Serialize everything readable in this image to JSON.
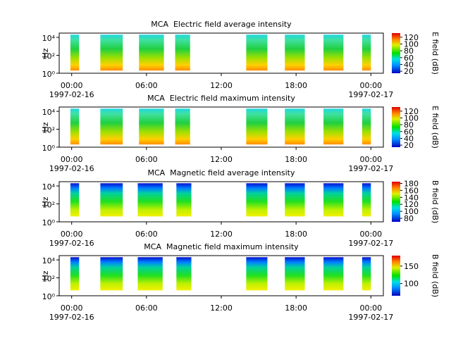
{
  "chart_data": [
    {
      "type": "spectrogram",
      "title": "MCA  Electric field average intensity",
      "ylabel": "Hz",
      "yscale": "log",
      "ylim": [
        1,
        30000
      ],
      "yticks": [
        {
          "value": 1,
          "label": "10⁰"
        },
        {
          "value": 100,
          "label": "10²"
        },
        {
          "value": 10000,
          "label": "10⁴"
        }
      ],
      "xlim": [
        -1,
        25
      ],
      "xticks": [
        {
          "value": 0,
          "label": "00:00"
        },
        {
          "value": 6,
          "label": "06:00"
        },
        {
          "value": 12,
          "label": "12:00"
        },
        {
          "value": 18,
          "label": "18:00"
        },
        {
          "value": 24,
          "label": "00:00"
        }
      ],
      "x_date_labels": [
        {
          "value": 0,
          "label": "1997-02-16"
        },
        {
          "value": 24,
          "label": "1997-02-17"
        }
      ],
      "segments": [
        [
          -0.1,
          0.6
        ],
        [
          2.3,
          4.1
        ],
        [
          5.4,
          7.4
        ],
        [
          8.3,
          9.5
        ],
        [
          14.0,
          15.7
        ],
        [
          17.1,
          18.7
        ],
        [
          20.2,
          21.8
        ],
        [
          23.3,
          24.0
        ]
      ],
      "freq_range": [
        2,
        20000
      ],
      "colorbar": {
        "label": "E field (dB)",
        "lim": [
          14,
          132
        ],
        "ticks": [
          20,
          40,
          60,
          80,
          100,
          120
        ]
      }
    },
    {
      "type": "spectrogram",
      "title": "MCA  Electric field maximum intensity",
      "ylabel": "Hz",
      "yscale": "log",
      "ylim": [
        1,
        30000
      ],
      "yticks": [
        {
          "value": 1,
          "label": "10⁰"
        },
        {
          "value": 100,
          "label": "10²"
        },
        {
          "value": 10000,
          "label": "10⁴"
        }
      ],
      "xlim": [
        -1,
        25
      ],
      "xticks": [
        {
          "value": 0,
          "label": "00:00"
        },
        {
          "value": 6,
          "label": "06:00"
        },
        {
          "value": 12,
          "label": "12:00"
        },
        {
          "value": 18,
          "label": "18:00"
        },
        {
          "value": 24,
          "label": "00:00"
        }
      ],
      "x_date_labels": [
        {
          "value": 0,
          "label": "1997-02-16"
        },
        {
          "value": 24,
          "label": "1997-02-17"
        }
      ],
      "segments": [
        [
          -0.1,
          0.6
        ],
        [
          2.3,
          4.1
        ],
        [
          5.4,
          7.4
        ],
        [
          8.3,
          9.5
        ],
        [
          14.0,
          15.7
        ],
        [
          17.1,
          18.7
        ],
        [
          20.2,
          21.8
        ],
        [
          23.3,
          24.0
        ]
      ],
      "freq_range": [
        2,
        20000
      ],
      "colorbar": {
        "label": "E field (dB)",
        "lim": [
          14,
          132
        ],
        "ticks": [
          20,
          40,
          60,
          80,
          100,
          120
        ]
      }
    },
    {
      "type": "spectrogram",
      "title": "MCA  Magnetic field average intensity",
      "ylabel": "Hz",
      "yscale": "log",
      "ylim": [
        1,
        30000
      ],
      "yticks": [
        {
          "value": 1,
          "label": "10⁰"
        },
        {
          "value": 100,
          "label": "10²"
        },
        {
          "value": 10000,
          "label": "10⁴"
        }
      ],
      "xlim": [
        -1,
        25
      ],
      "xticks": [
        {
          "value": 0,
          "label": "00:00"
        },
        {
          "value": 6,
          "label": "06:00"
        },
        {
          "value": 12,
          "label": "12:00"
        },
        {
          "value": 18,
          "label": "18:00"
        },
        {
          "value": 24,
          "label": "00:00"
        }
      ],
      "x_date_labels": [
        {
          "value": 0,
          "label": "1997-02-16"
        },
        {
          "value": 24,
          "label": "1997-02-17"
        }
      ],
      "segments": [
        [
          -0.1,
          0.6
        ],
        [
          2.3,
          4.1
        ],
        [
          5.3,
          7.3
        ],
        [
          8.4,
          9.6
        ],
        [
          14.0,
          15.7
        ],
        [
          17.1,
          18.7
        ],
        [
          20.2,
          21.8
        ],
        [
          23.3,
          24.0
        ]
      ],
      "freq_range": [
        4,
        20000
      ],
      "colorbar": {
        "label": "B field (dB)",
        "lim": [
          70,
          185
        ],
        "ticks": [
          80,
          100,
          120,
          140,
          160,
          180
        ]
      }
    },
    {
      "type": "spectrogram",
      "title": "MCA  Magnetic field maximum intensity",
      "ylabel": "Hz",
      "yscale": "log",
      "ylim": [
        1,
        30000
      ],
      "yticks": [
        {
          "value": 1,
          "label": "10⁰"
        },
        {
          "value": 100,
          "label": "10²"
        },
        {
          "value": 10000,
          "label": "10⁴"
        }
      ],
      "xlim": [
        -1,
        25
      ],
      "xticks": [
        {
          "value": 0,
          "label": "00:00"
        },
        {
          "value": 6,
          "label": "06:00"
        },
        {
          "value": 12,
          "label": "12:00"
        },
        {
          "value": 18,
          "label": "18:00"
        },
        {
          "value": 24,
          "label": "00:00"
        }
      ],
      "x_date_labels": [
        {
          "value": 0,
          "label": "1997-02-16"
        },
        {
          "value": 24,
          "label": "1997-02-17"
        }
      ],
      "segments": [
        [
          -0.1,
          0.6
        ],
        [
          2.3,
          4.1
        ],
        [
          5.3,
          7.3
        ],
        [
          8.4,
          9.6
        ],
        [
          14.0,
          15.7
        ],
        [
          17.1,
          18.7
        ],
        [
          20.2,
          21.8
        ],
        [
          23.3,
          24.0
        ]
      ],
      "freq_range": [
        4,
        20000
      ],
      "colorbar": {
        "label": "B field (dB)",
        "lim": [
          65,
          180
        ],
        "ticks": [
          100,
          150
        ]
      }
    }
  ]
}
